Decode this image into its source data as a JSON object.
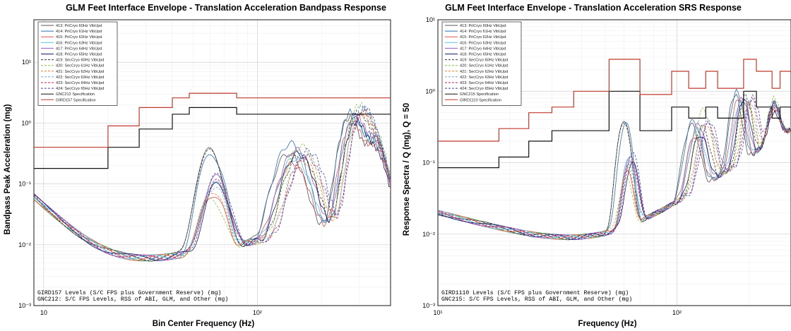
{
  "chart_data": [
    {
      "type": "line",
      "title": "GLM Feet Interface Envelope - Translation Acceleration Bandpass Response",
      "xlabel": "Bin Center Frequency (Hz)",
      "ylabel": "Bandpass Peak Acceleration (mg)",
      "xscale": "log",
      "yscale": "log",
      "xlim": [
        9,
        420
      ],
      "ylim": [
        0.001,
        50
      ],
      "x_ticks": [
        10,
        100
      ],
      "x_tick_labels": [
        "10",
        "10²"
      ],
      "y_ticks": [
        0.001,
        0.01,
        0.1,
        1,
        10
      ],
      "y_tick_labels": [
        "10⁻³",
        "10⁻²",
        "10⁻¹",
        "10⁰",
        "10¹"
      ],
      "grid": true,
      "legend_position": "top-left",
      "annotations": [
        "GIRD157 Levels (S/C FPS plus Government Reserve) (mg)",
        "GNC212: S/C FPS Levels, RSS of ABI, GLM, and Other (mg)"
      ],
      "series": [
        {
          "name": "413: PriCryo 60Hz VibUpd",
          "color": "#555555",
          "dash": "solid",
          "peak_hz": 60,
          "peak": 0.35,
          "hf": [
            0.3,
            1.2,
            0.5
          ]
        },
        {
          "name": "414: PriCryo 61Hz VibUpd",
          "color": "#2f6fb0",
          "dash": "solid",
          "peak_hz": 61,
          "peak": 0.3,
          "hf": [
            0.45,
            1.5,
            0.6
          ]
        },
        {
          "name": "415: PriCryo 62Hz VibUpd",
          "color": "#d9534f",
          "dash": "solid",
          "peak_hz": 62,
          "peak": 0.06,
          "hf": [
            0.2,
            1.0,
            0.4
          ]
        },
        {
          "name": "416: PriCryo 63Hz VibUpd",
          "color": "#5bc0de",
          "dash": "solid",
          "peak_hz": 63,
          "peak": 0.1,
          "hf": [
            0.25,
            1.1,
            0.45
          ]
        },
        {
          "name": "417: PriCryo 64Hz VibUpd",
          "color": "#9b59b6",
          "dash": "solid",
          "peak_hz": 64,
          "peak": 0.12,
          "hf": [
            0.35,
            1.3,
            0.5
          ]
        },
        {
          "name": "418: PriCryo 65Hz VibUpd",
          "color": "#1a1a5e",
          "dash": "solid",
          "peak_hz": 65,
          "peak": 0.09,
          "hf": [
            0.3,
            1.0,
            0.35
          ]
        },
        {
          "name": "419: SecCryo 60Hz VibUpd",
          "color": "#333333",
          "dash": "dashed",
          "peak_hz": 60,
          "peak": 0.33,
          "hf": [
            0.28,
            1.4,
            0.55
          ]
        },
        {
          "name": "420: SecCryo 61Hz VibUpd",
          "color": "#8cbf3f",
          "dash": "dashed",
          "peak_hz": 61,
          "peak": 0.05,
          "hf": [
            0.4,
            1.8,
            0.7
          ]
        },
        {
          "name": "421: SecCryo 62Hz VibUpd",
          "color": "#e67e22",
          "dash": "dashed",
          "peak_hz": 62,
          "peak": 0.07,
          "hf": [
            0.22,
            1.2,
            0.5
          ]
        },
        {
          "name": "422: SecCryo 63Hz VibUpd",
          "color": "#6fa8dc",
          "dash": "dashed",
          "peak_hz": 63,
          "peak": 0.08,
          "hf": [
            0.3,
            1.6,
            0.6
          ]
        },
        {
          "name": "423: SecCryo 64Hz VibUpd",
          "color": "#c2185b",
          "dash": "dashed",
          "peak_hz": 64,
          "peak": 0.1,
          "hf": [
            0.26,
            1.3,
            0.45
          ]
        },
        {
          "name": "424: SecCryo 65Hz VibUpd",
          "color": "#3949ab",
          "dash": "dashed",
          "peak_hz": 65,
          "peak": 0.13,
          "hf": [
            0.33,
            1.5,
            0.5
          ]
        },
        {
          "name": "GNC212 Specification",
          "color": "#111111",
          "dash": "solid",
          "spec": true,
          "x": [
            9,
            20,
            20,
            28,
            28,
            40,
            40,
            48,
            48,
            55,
            55,
            80,
            80,
            100,
            100,
            140,
            140,
            200,
            200,
            420
          ],
          "y": [
            0.18,
            0.18,
            0.4,
            0.4,
            0.8,
            0.8,
            1.4,
            1.4,
            1.8,
            1.8,
            1.8,
            1.8,
            1.4,
            1.4,
            1.4,
            1.4,
            1.4,
            1.4,
            1.4,
            1.4
          ]
        },
        {
          "name": "GIRD157 Specification",
          "color": "#c0392b",
          "dash": "solid",
          "spec": true,
          "x": [
            9,
            20,
            20,
            28,
            28,
            40,
            40,
            48,
            48,
            55,
            55,
            80,
            80,
            100,
            100,
            140,
            140,
            200,
            200,
            420
          ],
          "y": [
            0.4,
            0.4,
            0.9,
            0.9,
            1.8,
            1.8,
            2.6,
            2.6,
            3.1,
            3.1,
            3.1,
            3.1,
            2.6,
            2.6,
            2.6,
            2.6,
            2.6,
            2.6,
            2.6,
            2.6
          ]
        }
      ]
    },
    {
      "type": "line",
      "title": "GLM Feet Interface Envelope - Translation Acceleration SRS Response",
      "xlabel": "Frequency (Hz)",
      "ylabel": "Response Spectra / Q (mg), Q = 50",
      "xscale": "log",
      "yscale": "log",
      "xlim": [
        10,
        300
      ],
      "ylim": [
        0.001,
        10
      ],
      "x_ticks": [
        10,
        100
      ],
      "x_tick_labels": [
        "10¹",
        "10²"
      ],
      "y_ticks": [
        0.001,
        0.01,
        0.1,
        1,
        10
      ],
      "y_tick_labels": [
        "10⁻³",
        "10⁻²",
        "10⁻¹",
        "10⁰",
        "10¹"
      ],
      "grid": true,
      "legend_position": "top-left",
      "annotations": [
        "GIRD1110 Levels (S/C FPS plus Government Reserve) (mg)",
        "GNC215: S/C FPS Levels, RSS of ABI, GLM, and Other (mg)"
      ],
      "series": [
        {
          "name": "413: PriCryo 60Hz VibUpd",
          "color": "#555555",
          "dash": "solid",
          "peak_hz": 60,
          "peak": 0.4,
          "hf": [
            0.3,
            0.8,
            0.5
          ]
        },
        {
          "name": "414: PriCryo 61Hz VibUpd",
          "color": "#2f6fb0",
          "dash": "solid",
          "peak_hz": 61,
          "peak": 0.35,
          "hf": [
            0.35,
            0.9,
            0.45
          ]
        },
        {
          "name": "415: PriCryo 62Hz VibUpd",
          "color": "#d9534f",
          "dash": "solid",
          "peak_hz": 62,
          "peak": 0.06,
          "hf": [
            0.2,
            0.7,
            0.35
          ]
        },
        {
          "name": "416: PriCryo 63Hz VibUpd",
          "color": "#5bc0de",
          "dash": "solid",
          "peak_hz": 63,
          "peak": 0.1,
          "hf": [
            0.25,
            0.6,
            0.4
          ]
        },
        {
          "name": "417: PriCryo 64Hz VibUpd",
          "color": "#9b59b6",
          "dash": "solid",
          "peak_hz": 64,
          "peak": 0.12,
          "hf": [
            0.3,
            0.7,
            0.45
          ]
        },
        {
          "name": "418: PriCryo 65Hz VibUpd",
          "color": "#1a1a5e",
          "dash": "solid",
          "peak_hz": 65,
          "peak": 0.09,
          "hf": [
            0.2,
            0.65,
            0.3
          ]
        },
        {
          "name": "419: SecCryo 60Hz VibUpd",
          "color": "#333333",
          "dash": "dashed",
          "peak_hz": 60,
          "peak": 0.38,
          "hf": [
            0.28,
            0.75,
            0.5
          ]
        },
        {
          "name": "420: SecCryo 61Hz VibUpd",
          "color": "#8cbf3f",
          "dash": "dashed",
          "peak_hz": 61,
          "peak": 0.05,
          "hf": [
            0.5,
            0.6,
            0.6
          ]
        },
        {
          "name": "421: SecCryo 62Hz VibUpd",
          "color": "#e67e22",
          "dash": "dashed",
          "peak_hz": 62,
          "peak": 0.07,
          "hf": [
            0.3,
            0.55,
            0.4
          ]
        },
        {
          "name": "422: SecCryo 63Hz VibUpd",
          "color": "#6fa8dc",
          "dash": "dashed",
          "peak_hz": 63,
          "peak": 0.08,
          "hf": [
            0.35,
            0.6,
            0.45
          ]
        },
        {
          "name": "423: SecCryo 64Hz VibUpd",
          "color": "#c2185b",
          "dash": "dashed",
          "peak_hz": 64,
          "peak": 0.1,
          "hf": [
            0.3,
            0.65,
            0.4
          ]
        },
        {
          "name": "424: SecCryo 65Hz VibUpd",
          "color": "#3949ab",
          "dash": "dashed",
          "peak_hz": 65,
          "peak": 0.13,
          "hf": [
            0.32,
            0.7,
            0.48
          ]
        },
        {
          "name": "GNC215 Specification",
          "color": "#111111",
          "dash": "solid",
          "spec": true,
          "x": [
            10,
            18,
            18,
            24,
            24,
            30,
            30,
            37,
            37,
            52,
            52,
            57,
            57,
            70,
            70,
            95,
            95,
            112,
            112,
            132,
            132,
            148,
            148,
            190,
            190,
            215,
            215,
            250,
            250,
            270,
            270,
            300
          ],
          "y": [
            0.085,
            0.085,
            0.12,
            0.12,
            0.2,
            0.2,
            0.28,
            0.28,
            0.28,
            0.28,
            1.0,
            1.0,
            1.0,
            1.0,
            0.28,
            0.28,
            0.6,
            0.6,
            0.42,
            0.42,
            0.6,
            0.6,
            0.42,
            0.42,
            1.0,
            1.0,
            0.6,
            0.6,
            0.42,
            0.42,
            0.6,
            0.6
          ]
        },
        {
          "name": "GIRD1110 Specification",
          "color": "#c0392b",
          "dash": "solid",
          "spec": true,
          "x": [
            10,
            18,
            18,
            24,
            24,
            30,
            30,
            37,
            37,
            52,
            52,
            57,
            57,
            70,
            70,
            95,
            95,
            112,
            112,
            132,
            132,
            148,
            148,
            190,
            190,
            215,
            215,
            250,
            250,
            270,
            270,
            300
          ],
          "y": [
            0.2,
            0.2,
            0.3,
            0.3,
            0.5,
            0.5,
            0.6,
            0.6,
            1.0,
            1.0,
            2.8,
            2.8,
            2.8,
            2.8,
            0.9,
            0.9,
            1.9,
            1.9,
            1.1,
            1.1,
            1.9,
            1.9,
            1.1,
            1.1,
            2.8,
            2.8,
            1.9,
            1.9,
            1.1,
            1.1,
            1.9,
            1.9
          ]
        }
      ]
    }
  ]
}
